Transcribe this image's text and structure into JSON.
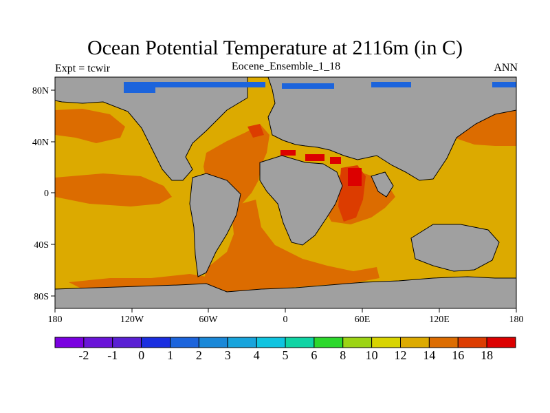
{
  "header": {
    "title": "Ocean Potential Temperature at 2116m (in C)",
    "left": "Expt = tcwir",
    "center": "Eocene_Ensemble_1_18",
    "right": "ANN"
  },
  "axes": {
    "lon_ticks": [
      "180",
      "120W",
      "60W",
      "0",
      "60E",
      "120E",
      "180"
    ],
    "lat_ticks": [
      "80N",
      "40N",
      "0",
      "40S",
      "80S"
    ]
  },
  "colorbar": {
    "labels": [
      "-2",
      "-1",
      "0",
      "1",
      "2",
      "3",
      "4",
      "5",
      "6",
      "8",
      "10",
      "12",
      "14",
      "16",
      "18"
    ],
    "colors": [
      "#7a00e0",
      "#6a14d8",
      "#5a20d4",
      "#1a2ee0",
      "#1c64dc",
      "#1a88d8",
      "#18a4dc",
      "#10c4e0",
      "#10d4a4",
      "#2cd82c",
      "#9cd414",
      "#d8d400",
      "#dcaa00",
      "#dc6c00",
      "#dc3c00",
      "#dc0000"
    ]
  },
  "map_colors": {
    "land": "#a0a0a0",
    "t12_14": "#dcaa00",
    "t14_16": "#dc6c00",
    "t16_18": "#dc3c00",
    "t18_plus": "#dc0000",
    "arctic": "#1c64dc"
  }
}
